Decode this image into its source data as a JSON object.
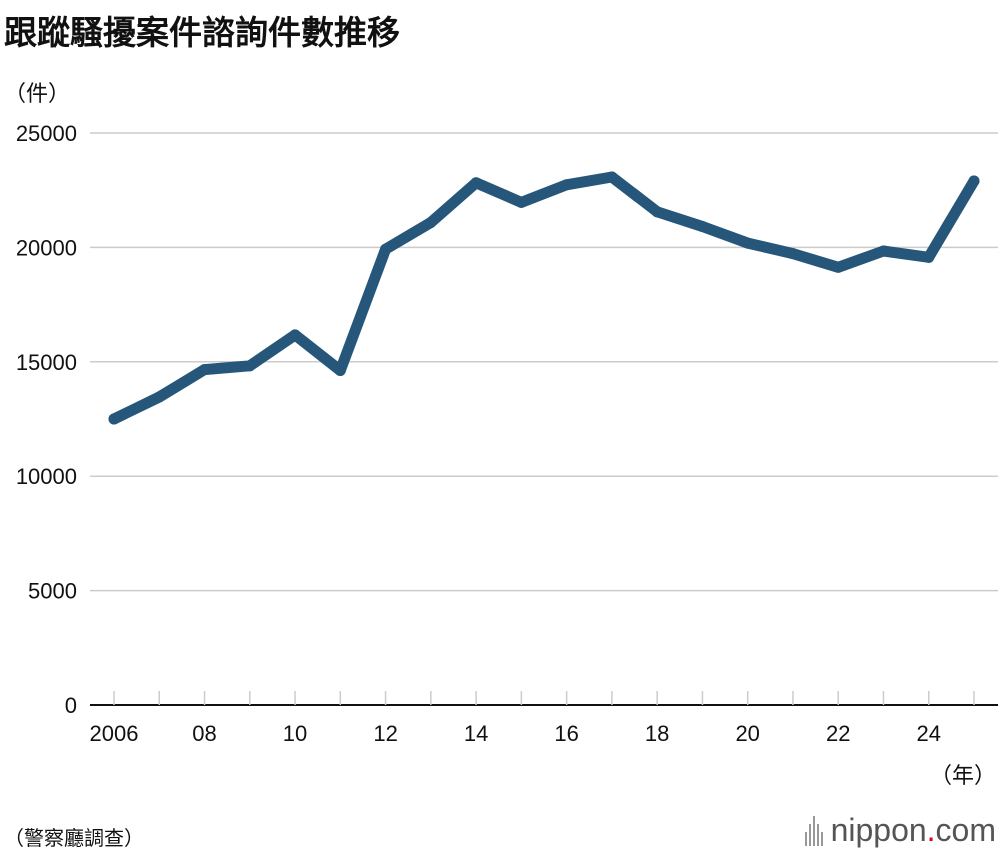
{
  "title": "跟蹤騷擾案件諮詢件數推移",
  "y_unit": "（件）",
  "x_unit": "（年）",
  "source": "（警察廳調查）",
  "logo": {
    "name": "nippon",
    "dot": ".",
    "tld": "com"
  },
  "colors": {
    "line": "#26577a",
    "grid": "#cccccc",
    "axis": "#111111"
  },
  "chart_data": {
    "type": "line",
    "x": [
      2006,
      2007,
      2008,
      2009,
      2010,
      2011,
      2012,
      2013,
      2014,
      2015,
      2016,
      2017,
      2018,
      2019,
      2020,
      2021,
      2022,
      2023,
      2024,
      2025
    ],
    "series": [
      {
        "values": [
          12500,
          13463,
          14657,
          14823,
          16176,
          14618,
          19920,
          21089,
          22823,
          21968,
          22737,
          23079,
          21556,
          20912,
          20189,
          19728,
          19131,
          19843,
          19567,
          22900
        ]
      }
    ],
    "x_tick_labels": [
      {
        "x": 2006,
        "label": "2006"
      },
      {
        "x": 2008,
        "label": "08"
      },
      {
        "x": 2010,
        "label": "10"
      },
      {
        "x": 2012,
        "label": "12"
      },
      {
        "x": 2014,
        "label": "14"
      },
      {
        "x": 2016,
        "label": "16"
      },
      {
        "x": 2018,
        "label": "18"
      },
      {
        "x": 2020,
        "label": "20"
      },
      {
        "x": 2022,
        "label": "22"
      },
      {
        "x": 2024,
        "label": "24"
      }
    ],
    "y_ticks": [
      0,
      5000,
      10000,
      15000,
      20000,
      25000
    ],
    "ylim": [
      0,
      25000
    ],
    "xlim": [
      2006,
      2025
    ],
    "grid": true,
    "legend": "none"
  }
}
